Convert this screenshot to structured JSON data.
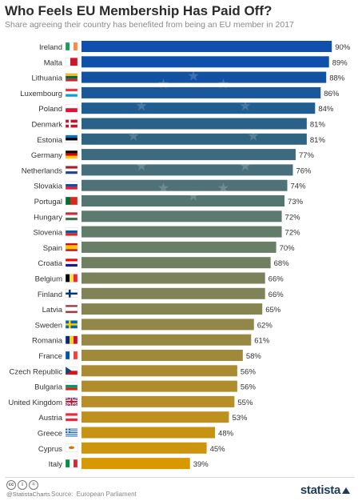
{
  "header": {
    "title": "Who Feels EU Membership Has Paid Off?",
    "subtitle": "Share agreeing their country has benefited from being an EU member in 2017"
  },
  "chart_data": {
    "type": "bar",
    "orientation": "horizontal",
    "title": "Who Feels EU Membership Has Paid Off?",
    "subtitle": "Share agreeing their country has benefited from being an EU member in 2017",
    "xlim": [
      0,
      100
    ],
    "grid": false,
    "legend": "none",
    "categories": [
      "Ireland",
      "Malta",
      "Lithuania",
      "Luxembourg",
      "Poland",
      "Denmark",
      "Estonia",
      "Germany",
      "Netherlands",
      "Slovakia",
      "Portugal",
      "Hungary",
      "Slovenia",
      "Spain",
      "Croatia",
      "Belgium",
      "Finland",
      "Latvia",
      "Sweden",
      "Romania",
      "France",
      "Czech Republic",
      "Bulgaria",
      "United Kingdom",
      "Austria",
      "Greece",
      "Cyprus",
      "Italy"
    ],
    "values": [
      90,
      89,
      88,
      86,
      84,
      81,
      81,
      77,
      76,
      74,
      73,
      72,
      72,
      70,
      68,
      66,
      66,
      65,
      62,
      61,
      58,
      56,
      56,
      55,
      53,
      48,
      45,
      39
    ],
    "labels": [
      "90%",
      "89%",
      "88%",
      "86%",
      "84%",
      "81%",
      "81%",
      "77%",
      "76%",
      "74%",
      "73%",
      "72%",
      "72%",
      "70%",
      "68%",
      "66%",
      "66%",
      "65%",
      "62%",
      "61%",
      "58%",
      "56%",
      "56%",
      "55%",
      "53%",
      "48%",
      "45%",
      "39%"
    ],
    "bar_colors": [
      "#0f4fae",
      "#0f50ab",
      "#1352a3",
      "#1a5899",
      "#205d91",
      "#2a6188",
      "#2f6583",
      "#3d6b7d",
      "#476e7b",
      "#4e7278",
      "#547673",
      "#5c7a6f",
      "#617c6b",
      "#697e66",
      "#717f61",
      "#7a815b",
      "#808357",
      "#87854f",
      "#918749",
      "#978843",
      "#a1893a",
      "#aa8b32",
      "#b08d2c",
      "#b78e27",
      "#be9020",
      "#c79313",
      "#cd950d",
      "#d89800"
    ],
    "flags": [
      {
        "type": "v3",
        "colors": [
          "#169b62",
          "#ffffff",
          "#ff883e"
        ]
      },
      {
        "type": "v2",
        "colors": [
          "#ffffff",
          "#cf142b"
        ]
      },
      {
        "type": "h3",
        "colors": [
          "#fdb913",
          "#006a44",
          "#c1272d"
        ]
      },
      {
        "type": "h3",
        "colors": [
          "#ef3340",
          "#ffffff",
          "#00a3e0"
        ]
      },
      {
        "type": "h2",
        "colors": [
          "#ffffff",
          "#dc143c"
        ]
      },
      {
        "type": "nordic",
        "colors": [
          "#c8102e",
          "#ffffff"
        ]
      },
      {
        "type": "h3",
        "colors": [
          "#0072ce",
          "#000000",
          "#ffffff"
        ]
      },
      {
        "type": "h3",
        "colors": [
          "#000000",
          "#dd0000",
          "#ffce00"
        ]
      },
      {
        "type": "h3",
        "colors": [
          "#ae1c28",
          "#ffffff",
          "#21468b"
        ]
      },
      {
        "type": "h3",
        "colors": [
          "#ffffff",
          "#0b4ea2",
          "#ee1c25"
        ]
      },
      {
        "type": "v2w",
        "colors": [
          "#046a38",
          "#da291c"
        ]
      },
      {
        "type": "h3",
        "colors": [
          "#ce2939",
          "#ffffff",
          "#477050"
        ]
      },
      {
        "type": "h3",
        "colors": [
          "#ffffff",
          "#005da4",
          "#ed1c24"
        ]
      },
      {
        "type": "h3w",
        "colors": [
          "#c60b1e",
          "#ffc400",
          "#c60b1e"
        ]
      },
      {
        "type": "h3",
        "colors": [
          "#ff0000",
          "#ffffff",
          "#171796"
        ]
      },
      {
        "type": "v3",
        "colors": [
          "#000000",
          "#fae042",
          "#ed2939"
        ]
      },
      {
        "type": "nordic",
        "colors": [
          "#ffffff",
          "#003580"
        ]
      },
      {
        "type": "h3w",
        "colors": [
          "#9e3039",
          "#ffffff",
          "#9e3039"
        ]
      },
      {
        "type": "nordic",
        "colors": [
          "#006aa7",
          "#fecc00"
        ]
      },
      {
        "type": "v3",
        "colors": [
          "#002b7f",
          "#fcd116",
          "#ce1126"
        ]
      },
      {
        "type": "v3",
        "colors": [
          "#0055a4",
          "#ffffff",
          "#ef4135"
        ]
      },
      {
        "type": "cz",
        "colors": [
          "#ffffff",
          "#d7141a",
          "#11457e"
        ]
      },
      {
        "type": "h3",
        "colors": [
          "#ffffff",
          "#00966e",
          "#d62612"
        ]
      },
      {
        "type": "uk",
        "colors": [
          "#012169",
          "#ffffff",
          "#c8102e"
        ]
      },
      {
        "type": "h3",
        "colors": [
          "#ed2939",
          "#ffffff",
          "#ed2939"
        ]
      },
      {
        "type": "gr",
        "colors": [
          "#0d5eaf",
          "#ffffff"
        ]
      },
      {
        "type": "cy",
        "colors": [
          "#ffffff",
          "#d57800"
        ]
      },
      {
        "type": "v3",
        "colors": [
          "#009246",
          "#ffffff",
          "#ce2b37"
        ]
      }
    ]
  },
  "footer": {
    "cc_icons": [
      "cc",
      "i",
      "="
    ],
    "handle": "@StatistaCharts",
    "source_label": "Source:",
    "source": "European Parliament",
    "logo": "statista"
  }
}
